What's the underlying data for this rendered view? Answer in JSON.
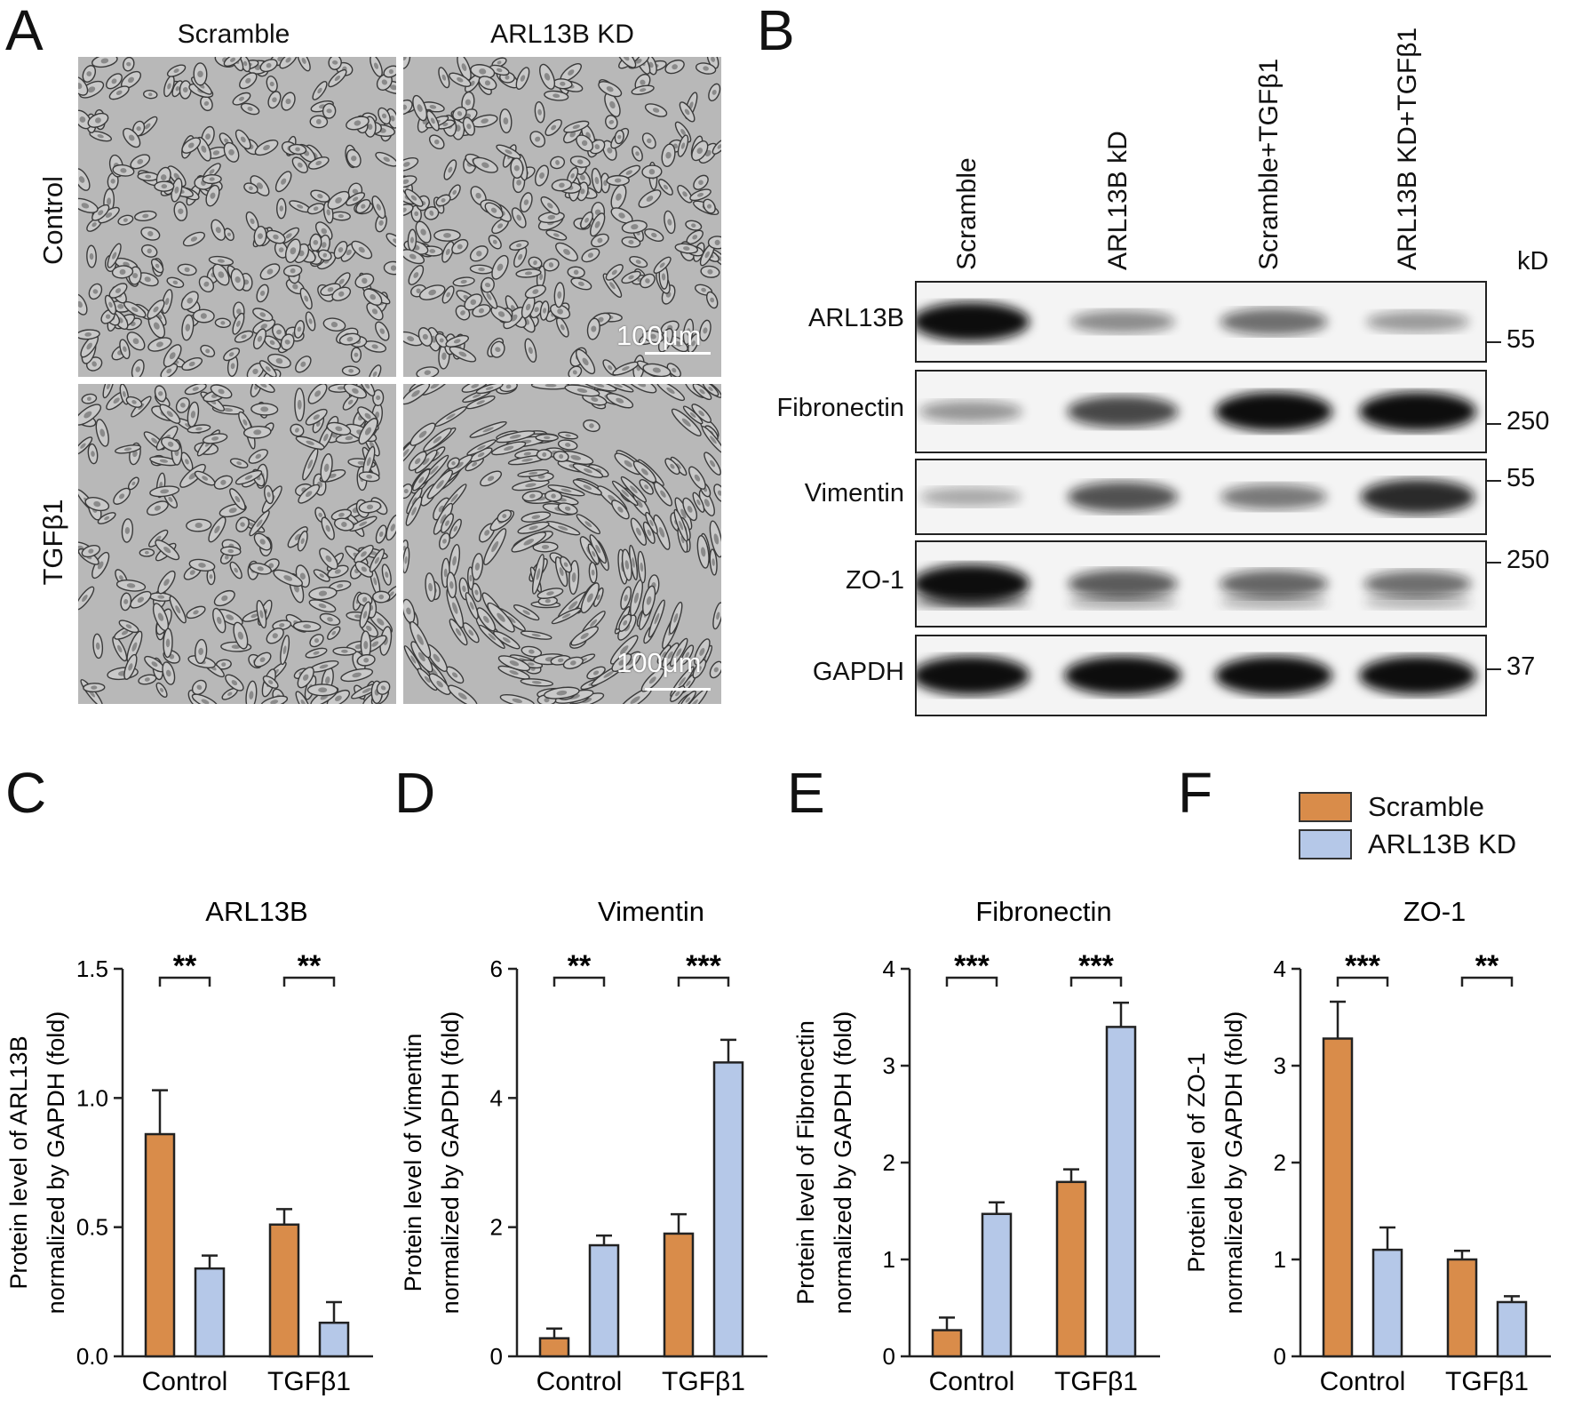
{
  "panels": {
    "A": "A",
    "B": "B",
    "C": "C",
    "D": "D",
    "E": "E",
    "F": "F"
  },
  "panelA": {
    "col_headers": [
      "Scramble",
      "ARL13B KD"
    ],
    "row_labels": [
      "Control",
      "TGFβ1"
    ],
    "scalebar": "100μm"
  },
  "panelB": {
    "lanes": [
      "Scramble",
      "ARL13B kD",
      "Scramble+TGFβ1",
      "ARL13B KD+TGFβ1"
    ],
    "unit": "kD",
    "blots": [
      {
        "protein": "ARL13B",
        "markers": [
          "55"
        ],
        "intensity": [
          1.0,
          0.35,
          0.5,
          0.28
        ]
      },
      {
        "protein": "Fibronectin",
        "markers": [
          "250"
        ],
        "intensity": [
          0.3,
          0.7,
          1.0,
          1.0
        ]
      },
      {
        "protein": "Vimentin",
        "markers": [
          "55"
        ],
        "intensity": [
          0.2,
          0.65,
          0.45,
          0.85
        ]
      },
      {
        "protein": "ZO-1",
        "markers": [
          "250"
        ],
        "intensity": [
          1.0,
          0.6,
          0.55,
          0.5
        ]
      },
      {
        "protein": "GAPDH",
        "markers": [
          "37"
        ],
        "intensity": [
          1.0,
          1.0,
          1.0,
          1.0
        ]
      }
    ]
  },
  "legend": {
    "items": [
      {
        "label": "Scramble",
        "color": "#d98c4a"
      },
      {
        "label": "ARL13B KD",
        "color": "#b5c8e8"
      }
    ]
  },
  "colors": {
    "scramble": "#d98c4a",
    "kd": "#b5c8e8",
    "stroke": "#222222"
  },
  "chart_data": [
    {
      "type": "bar",
      "title": "ARL13B",
      "ylabel": [
        "Protein level of ARL13B",
        "normalized by GAPDH (fold)"
      ],
      "categories": [
        "Control",
        "TGFβ1"
      ],
      "ylim": [
        0,
        1.5
      ],
      "yticks": [
        "0.0",
        "0.5",
        "1.0",
        "1.5"
      ],
      "ytick_values": [
        0,
        0.5,
        1.0,
        1.5
      ],
      "series": [
        {
          "name": "Scramble",
          "values": [
            0.86,
            0.51
          ],
          "errors": [
            0.17,
            0.06
          ]
        },
        {
          "name": "ARL13B KD",
          "values": [
            0.34,
            0.13
          ],
          "errors": [
            0.05,
            0.08
          ]
        }
      ],
      "significance": [
        "**",
        "**"
      ]
    },
    {
      "type": "bar",
      "title": "Vimentin",
      "ylabel": [
        "Protein level of Vimentin",
        "normalized by GAPDH (fold)"
      ],
      "categories": [
        "Control",
        "TGFβ1"
      ],
      "ylim": [
        0,
        6
      ],
      "yticks": [
        "0",
        "2",
        "4",
        "6"
      ],
      "ytick_values": [
        0,
        2,
        4,
        6
      ],
      "series": [
        {
          "name": "Scramble",
          "values": [
            0.28,
            1.9
          ],
          "errors": [
            0.15,
            0.3
          ]
        },
        {
          "name": "ARL13B KD",
          "values": [
            1.72,
            4.55
          ],
          "errors": [
            0.15,
            0.35
          ]
        }
      ],
      "significance": [
        "**",
        "***"
      ]
    },
    {
      "type": "bar",
      "title": "Fibronectin",
      "ylabel": [
        "Protein level of Fibronectin",
        "normalized by GAPDH (fold)"
      ],
      "categories": [
        "Control",
        "TGFβ1"
      ],
      "ylim": [
        0,
        4
      ],
      "yticks": [
        "0",
        "1",
        "2",
        "3",
        "4"
      ],
      "ytick_values": [
        0,
        1,
        2,
        3,
        4
      ],
      "series": [
        {
          "name": "Scramble",
          "values": [
            0.27,
            1.8
          ],
          "errors": [
            0.13,
            0.13
          ]
        },
        {
          "name": "ARL13B KD",
          "values": [
            1.47,
            3.4
          ],
          "errors": [
            0.12,
            0.25
          ]
        }
      ],
      "significance": [
        "***",
        "***"
      ]
    },
    {
      "type": "bar",
      "title": "ZO-1",
      "ylabel": [
        "Protein level of ZO-1",
        "normalized by GAPDH (fold)"
      ],
      "categories": [
        "Control",
        "TGFβ1"
      ],
      "ylim": [
        0,
        4
      ],
      "yticks": [
        "0",
        "1",
        "2",
        "3",
        "4"
      ],
      "ytick_values": [
        0,
        1,
        2,
        3,
        4
      ],
      "series": [
        {
          "name": "Scramble",
          "values": [
            3.28,
            1.0
          ],
          "errors": [
            0.38,
            0.09
          ]
        },
        {
          "name": "ARL13B KD",
          "values": [
            1.1,
            0.56
          ],
          "errors": [
            0.23,
            0.06
          ]
        }
      ],
      "significance": [
        "***",
        "**"
      ]
    }
  ]
}
